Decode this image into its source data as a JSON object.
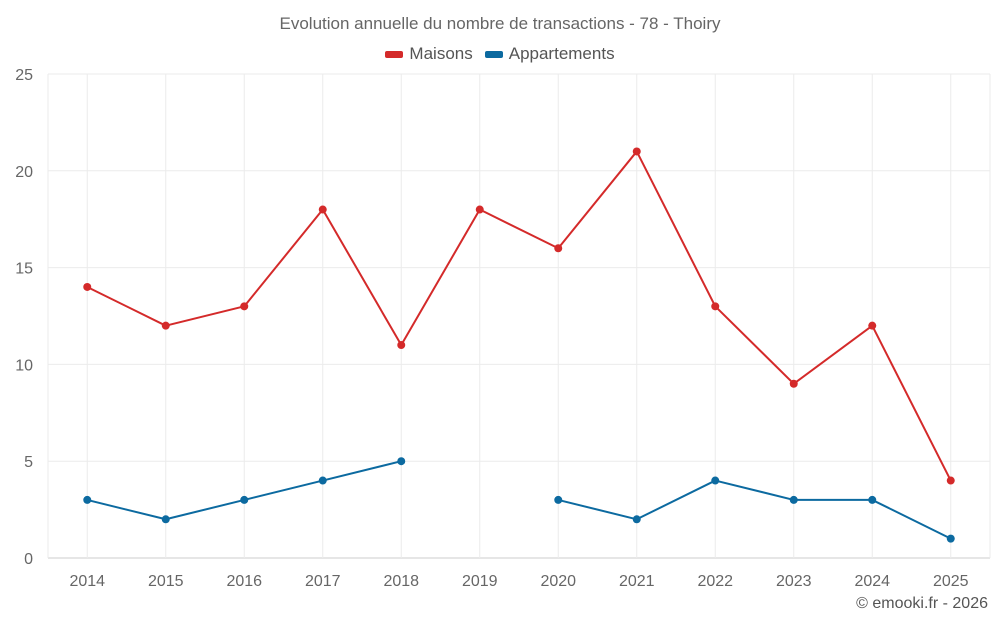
{
  "chart_data": {
    "type": "line",
    "title": "Evolution annuelle du nombre de transactions - 78 - Thoiry",
    "categories": [
      "2014",
      "2015",
      "2016",
      "2017",
      "2018",
      "2019",
      "2020",
      "2021",
      "2022",
      "2023",
      "2024",
      "2025"
    ],
    "ylim": [
      0,
      25
    ],
    "yticks": [
      0,
      5,
      10,
      15,
      20,
      25
    ],
    "grid": true,
    "legend_position": "top-center",
    "series": [
      {
        "name": "Maisons",
        "color": "#d42a2a",
        "values": [
          14,
          12,
          13,
          18,
          11,
          18,
          16,
          21,
          13,
          9,
          12,
          4
        ]
      },
      {
        "name": "Appartements",
        "color": "#0c6aa0",
        "values": [
          3,
          2,
          3,
          4,
          5,
          null,
          3,
          2,
          4,
          3,
          3,
          1
        ]
      }
    ]
  },
  "credit": "© emooki.fr - 2026"
}
